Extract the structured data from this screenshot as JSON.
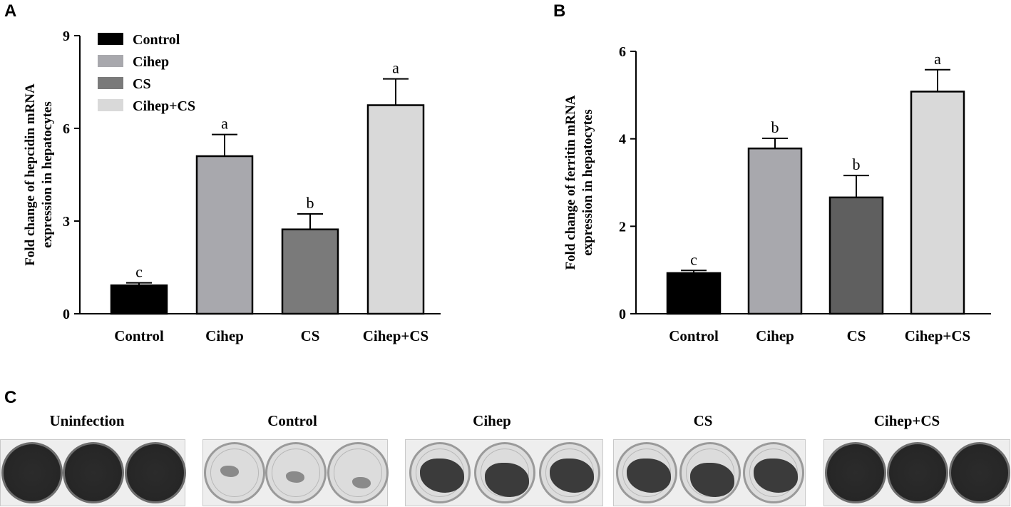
{
  "panels": {
    "a": "A",
    "b": "B",
    "c": "C"
  },
  "chart_data": [
    {
      "type": "bar",
      "panel": "A",
      "categories": [
        "Control",
        "Cihep",
        "CS",
        "Cihep+CS"
      ],
      "values": [
        0.92,
        5.1,
        2.73,
        6.75
      ],
      "errors": [
        0.08,
        0.7,
        0.5,
        0.85
      ],
      "significance": [
        "c",
        "a",
        "b",
        "a"
      ],
      "colors": [
        "#000000",
        "#a8a8ad",
        "#7a7a7a",
        "#d9d9d9"
      ],
      "ylabel_line1": "Fold change of hepcidin mRNA",
      "ylabel_line2": "expression in  hepatocytes",
      "ylim": [
        0,
        9
      ],
      "yticks": [
        0,
        3,
        6,
        9
      ],
      "legend": [
        "Control",
        "Cihep",
        "CS",
        "Cihep+CS"
      ],
      "legend_position": "top-left"
    },
    {
      "type": "bar",
      "panel": "B",
      "categories": [
        "Control",
        "Cihep",
        "CS",
        "Cihep+CS"
      ],
      "values": [
        0.93,
        3.78,
        2.66,
        5.08
      ],
      "errors": [
        0.06,
        0.23,
        0.5,
        0.5
      ],
      "significance": [
        "c",
        "b",
        "b",
        "a"
      ],
      "colors": [
        "#000000",
        "#a8a8ad",
        "#5f5f5f",
        "#d9d9d9"
      ],
      "ylabel_line1": "Fold change of ferritin mRNA",
      "ylabel_line2": "expression in  hepatocytes",
      "ylim": [
        0,
        6
      ],
      "yticks": [
        0,
        2,
        4,
        6
      ]
    }
  ],
  "plates": [
    {
      "label": "Uninfection",
      "style": "dark"
    },
    {
      "label": "Control",
      "style": "clear"
    },
    {
      "label": "Cihep",
      "style": "partial"
    },
    {
      "label": "CS",
      "style": "partial"
    },
    {
      "label": "Cihep+CS",
      "style": "dark"
    }
  ]
}
